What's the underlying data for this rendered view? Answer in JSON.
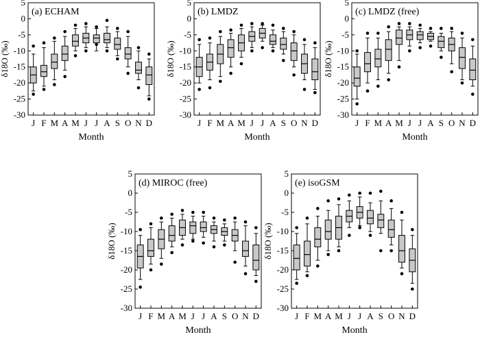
{
  "chart_data": [
    {
      "type": "boxplot",
      "title": "(a) ECHAM",
      "xlabel": "Month",
      "ylabel": "δ18O (‰)",
      "ylim": [
        -30,
        5
      ],
      "yticks": [
        5,
        0,
        -5,
        -10,
        -15,
        -20,
        -25,
        -30
      ],
      "categories": [
        "J",
        "F",
        "M",
        "A",
        "M",
        "J",
        "J",
        "A",
        "S",
        "O",
        "N",
        "D"
      ],
      "boxes": [
        {
          "wlo": -22.5,
          "q1": -20,
          "med": -17.5,
          "q3": -15,
          "whi": -11,
          "outliers": [
            -23.5,
            -8.5
          ]
        },
        {
          "wlo": -21,
          "q1": -18,
          "med": -16.5,
          "q3": -14.5,
          "whi": -9,
          "outliers": [
            -22,
            -7.5
          ]
        },
        {
          "wlo": -19,
          "q1": -15.5,
          "med": -13.5,
          "q3": -11,
          "whi": -7,
          "outliers": [
            -20.5,
            -6
          ]
        },
        {
          "wlo": -16,
          "q1": -13,
          "med": -11,
          "q3": -8.5,
          "whi": -5.5,
          "outliers": [
            -18,
            -4
          ]
        },
        {
          "wlo": -10,
          "q1": -8.5,
          "med": -7,
          "q3": -5,
          "whi": -3,
          "outliers": [
            -11.5,
            -2
          ]
        },
        {
          "wlo": -9,
          "q1": -7.5,
          "med": -6,
          "q3": -4.5,
          "whi": -2.5,
          "outliers": [
            -10,
            -1.5
          ]
        },
        {
          "wlo": -10,
          "q1": -7.5,
          "med": -6,
          "q3": -5,
          "whi": -3,
          "outliers": [
            -8,
            -2.5
          ]
        },
        {
          "wlo": -9,
          "q1": -7.5,
          "med": -6.5,
          "q3": -4.5,
          "whi": -2.5,
          "outliers": [
            -10,
            -0.5
          ]
        },
        {
          "wlo": -11.5,
          "q1": -9.5,
          "med": -8,
          "q3": -6,
          "whi": -4,
          "outliers": [
            -12.5,
            -3
          ]
        },
        {
          "wlo": -15,
          "q1": -12.5,
          "med": -11,
          "q3": -9,
          "whi": -5.5,
          "outliers": [
            -17,
            -4
          ]
        },
        {
          "wlo": -19,
          "q1": -17,
          "med": -16,
          "q3": -13.5,
          "whi": -10,
          "outliers": [
            -21.5,
            -9
          ]
        },
        {
          "wlo": -24,
          "q1": -20.5,
          "med": -17.5,
          "q3": -15,
          "whi": -12.5,
          "outliers": [
            -25,
            -11
          ]
        }
      ]
    },
    {
      "type": "boxplot",
      "title": "(b) LMDZ",
      "xlabel": "Month",
      "ylabel": "δ18O (‰)",
      "ylim": [
        -30,
        5
      ],
      "yticks": [
        5,
        0,
        -5,
        -10,
        -15,
        -20,
        -25,
        -30
      ],
      "categories": [
        "J",
        "F",
        "M",
        "A",
        "M",
        "J",
        "J",
        "A",
        "S",
        "O",
        "N",
        "D"
      ],
      "boxes": [
        {
          "wlo": -20,
          "q1": -18,
          "med": -15,
          "q3": -12,
          "whi": -8,
          "outliers": [
            -22,
            -6.5
          ]
        },
        {
          "wlo": -19,
          "q1": -16,
          "med": -13.5,
          "q3": -11,
          "whi": -7.5,
          "outliers": [
            -21.5,
            -6
          ]
        },
        {
          "wlo": -18,
          "q1": -14,
          "med": -11,
          "q3": -8,
          "whi": -5.5,
          "outliers": [
            -19.5,
            -4
          ]
        },
        {
          "wlo": -15,
          "q1": -12,
          "med": -9,
          "q3": -6.5,
          "whi": -4.5,
          "outliers": [
            -17,
            -3.5
          ]
        },
        {
          "wlo": -12,
          "q1": -10,
          "med": -7.5,
          "q3": -5,
          "whi": -3,
          "outliers": [
            -14,
            -2
          ]
        },
        {
          "wlo": -9,
          "q1": -7,
          "med": -5.5,
          "q3": -4,
          "whi": -2.5,
          "outliers": [
            -10,
            -1.5
          ]
        },
        {
          "wlo": -7,
          "q1": -6,
          "med": -4.5,
          "q3": -3,
          "whi": -2,
          "outliers": [
            -9,
            -1.5
          ]
        },
        {
          "wlo": -9,
          "q1": -8,
          "med": -7,
          "q3": -5,
          "whi": -3.5,
          "outliers": [
            -10,
            -2
          ]
        },
        {
          "wlo": -11,
          "q1": -9.5,
          "med": -8,
          "q3": -6,
          "whi": -4,
          "outliers": [
            -13,
            -3
          ]
        },
        {
          "wlo": -15,
          "q1": -13,
          "med": -10,
          "q3": -7.5,
          "whi": -5,
          "outliers": [
            -17.5,
            -4
          ]
        },
        {
          "wlo": -19,
          "q1": -17,
          "med": -14,
          "q3": -11,
          "whi": -8,
          "outliers": [
            -22,
            -6.5
          ]
        },
        {
          "wlo": -22,
          "q1": -19,
          "med": -16.5,
          "q3": -12.5,
          "whi": -9,
          "outliers": [
            -23,
            -7.5
          ]
        }
      ]
    },
    {
      "type": "boxplot",
      "title": "(c) LMDZ (free)",
      "xlabel": "Month",
      "ylabel": "δ18O (‰)",
      "ylim": [
        -30,
        5
      ],
      "yticks": [
        5,
        0,
        -5,
        -10,
        -15,
        -20,
        -25,
        -30
      ],
      "categories": [
        "J",
        "F",
        "M",
        "A",
        "M",
        "J",
        "J",
        "A",
        "S",
        "O",
        "N",
        "D"
      ],
      "boxes": [
        {
          "wlo": -25,
          "q1": -21,
          "med": -18.5,
          "q3": -15,
          "whi": -11,
          "outliers": [
            -26.5,
            -10
          ]
        },
        {
          "wlo": -20,
          "q1": -16.5,
          "med": -14,
          "q3": -10.5,
          "whi": -6,
          "outliers": [
            -22.5,
            -4.5
          ]
        },
        {
          "wlo": -19,
          "q1": -15,
          "med": -12.5,
          "q3": -9.5,
          "whi": -6,
          "outliers": [
            -21,
            -4.5
          ]
        },
        {
          "wlo": -17,
          "q1": -13,
          "med": -9.5,
          "q3": -6.5,
          "whi": -4,
          "outliers": [
            -19,
            -2.5
          ]
        },
        {
          "wlo": -13,
          "q1": -8,
          "med": -6,
          "q3": -3.5,
          "whi": -2.5,
          "outliers": [
            -15,
            -1.5
          ]
        },
        {
          "wlo": -8.5,
          "q1": -6.5,
          "med": -5,
          "q3": -3.5,
          "whi": -2.5,
          "outliers": [
            -10,
            -1.5
          ]
        },
        {
          "wlo": -7.5,
          "q1": -6.5,
          "med": -5,
          "q3": -4,
          "whi": -3,
          "outliers": [
            -9,
            -2
          ]
        },
        {
          "wlo": -7,
          "q1": -6.5,
          "med": -5.5,
          "q3": -4.5,
          "whi": -4,
          "outliers": [
            -8.5,
            -3
          ]
        },
        {
          "wlo": -10,
          "q1": -9,
          "med": -7,
          "q3": -5.5,
          "whi": -4.5,
          "outliers": [
            -12,
            -3
          ]
        },
        {
          "wlo": -14,
          "q1": -10,
          "med": -8,
          "q3": -6,
          "whi": -4,
          "outliers": [
            -16.5,
            -3
          ]
        },
        {
          "wlo": -19,
          "q1": -15.5,
          "med": -12,
          "q3": -9,
          "whi": -6,
          "outliers": [
            -20,
            -4.5
          ]
        },
        {
          "wlo": -21,
          "q1": -19,
          "med": -16,
          "q3": -12.5,
          "whi": -8.5,
          "outliers": [
            -23.5,
            -6.5
          ]
        }
      ]
    },
    {
      "type": "boxplot",
      "title": "(d) MIROC (free)",
      "xlabel": "Month",
      "ylabel": "δ18O (‰)",
      "ylim": [
        -30,
        5
      ],
      "yticks": [
        5,
        0,
        -5,
        -10,
        -15,
        -20,
        -25,
        -30
      ],
      "categories": [
        "J",
        "F",
        "M",
        "A",
        "M",
        "J",
        "J",
        "A",
        "S",
        "O",
        "N",
        "D"
      ],
      "boxes": [
        {
          "wlo": -22.5,
          "q1": -19.5,
          "med": -16.5,
          "q3": -13.5,
          "whi": -11,
          "outliers": [
            -24.5,
            -9.5
          ]
        },
        {
          "wlo": -18.5,
          "q1": -16.5,
          "med": -15,
          "q3": -12,
          "whi": -9,
          "outliers": [
            -20,
            -8
          ]
        },
        {
          "wlo": -17,
          "q1": -14.5,
          "med": -12,
          "q3": -9.5,
          "whi": -7.5,
          "outliers": [
            -18.5,
            -6.5
          ]
        },
        {
          "wlo": -14,
          "q1": -12.5,
          "med": -11,
          "q3": -8.5,
          "whi": -6.5,
          "outliers": [
            -15.5,
            -5.5
          ]
        },
        {
          "wlo": -12,
          "q1": -11,
          "med": -9,
          "q3": -7,
          "whi": -5.5,
          "outliers": [
            -13.5,
            -4.5
          ]
        },
        {
          "wlo": -12,
          "q1": -10.5,
          "med": -8.5,
          "q3": -7.5,
          "whi": -6,
          "outliers": [
            -12.5,
            -5
          ]
        },
        {
          "wlo": -11.5,
          "q1": -10,
          "med": -9,
          "q3": -7.5,
          "whi": -6,
          "outliers": [
            -13,
            -5
          ]
        },
        {
          "wlo": -12.5,
          "q1": -10.5,
          "med": -9.5,
          "q3": -8.5,
          "whi": -7.5,
          "outliers": [
            -14,
            -6.5
          ]
        },
        {
          "wlo": -12.5,
          "q1": -11,
          "med": -10,
          "q3": -9,
          "whi": -8,
          "outliers": [
            -13.5,
            -7
          ]
        },
        {
          "wlo": -15,
          "q1": -12.5,
          "med": -11,
          "q3": -9.5,
          "whi": -7.5,
          "outliers": [
            -18,
            -6.5
          ]
        },
        {
          "wlo": -19,
          "q1": -16.5,
          "med": -15,
          "q3": -12.5,
          "whi": -8.5,
          "outliers": [
            -21,
            -7.5
          ]
        },
        {
          "wlo": -21.5,
          "q1": -20,
          "med": -17.5,
          "q3": -13.5,
          "whi": -10.5,
          "outliers": [
            -23,
            -9
          ]
        }
      ]
    },
    {
      "type": "boxplot",
      "title": "(e) isoGSM",
      "xlabel": "Month",
      "ylabel": "δ18O (‰)",
      "ylim": [
        -30,
        5
      ],
      "yticks": [
        5,
        0,
        -5,
        -10,
        -15,
        -20,
        -25,
        -30
      ],
      "categories": [
        "J",
        "F",
        "M",
        "A",
        "M",
        "J",
        "J",
        "A",
        "S",
        "O",
        "N",
        "D"
      ],
      "boxes": [
        {
          "wlo": -22.5,
          "q1": -20,
          "med": -17,
          "q3": -13.5,
          "whi": -10.5,
          "outliers": [
            -23.5,
            -9
          ]
        },
        {
          "wlo": -20.5,
          "q1": -19,
          "med": -16,
          "q3": -12.5,
          "whi": -8,
          "outliers": [
            -21.5,
            -6.5
          ]
        },
        {
          "wlo": -17.5,
          "q1": -14,
          "med": -12,
          "q3": -9,
          "whi": -6,
          "outliers": [
            -19,
            -4
          ]
        },
        {
          "wlo": -15,
          "q1": -12,
          "med": -10,
          "q3": -7,
          "whi": -4.5,
          "outliers": [
            -16,
            -2
          ]
        },
        {
          "wlo": -14,
          "q1": -12,
          "med": -9,
          "q3": -6,
          "whi": -3,
          "outliers": [
            -15,
            -1.5
          ]
        },
        {
          "wlo": -9,
          "q1": -7.5,
          "med": -6,
          "q3": -4.5,
          "whi": -2,
          "outliers": [
            -11,
            -0.5
          ]
        },
        {
          "wlo": -8.5,
          "q1": -6.5,
          "med": -5,
          "q3": -3.5,
          "whi": -1,
          "outliers": [
            -9,
            0
          ]
        },
        {
          "wlo": -10,
          "q1": -8,
          "med": -6.5,
          "q3": -4.5,
          "whi": -2.5,
          "outliers": [
            -11,
            0
          ]
        },
        {
          "wlo": -10.5,
          "q1": -9,
          "med": -7,
          "q3": -5.5,
          "whi": -2,
          "outliers": [
            -15,
            0.5
          ]
        },
        {
          "wlo": -13.5,
          "q1": -11.5,
          "med": -9.5,
          "q3": -7,
          "whi": -4,
          "outliers": [
            -15,
            -2
          ]
        },
        {
          "wlo": -19.5,
          "q1": -18,
          "med": -15,
          "q3": -11,
          "whi": -7,
          "outliers": [
            -21,
            -5
          ]
        },
        {
          "wlo": -23.5,
          "q1": -20.5,
          "med": -17.5,
          "q3": -14.5,
          "whi": -11,
          "outliers": [
            -25,
            -9.5
          ]
        }
      ]
    }
  ],
  "style": {
    "box_fill": "#c8c8c8",
    "line": "#000000",
    "background": "#ffffff"
  }
}
